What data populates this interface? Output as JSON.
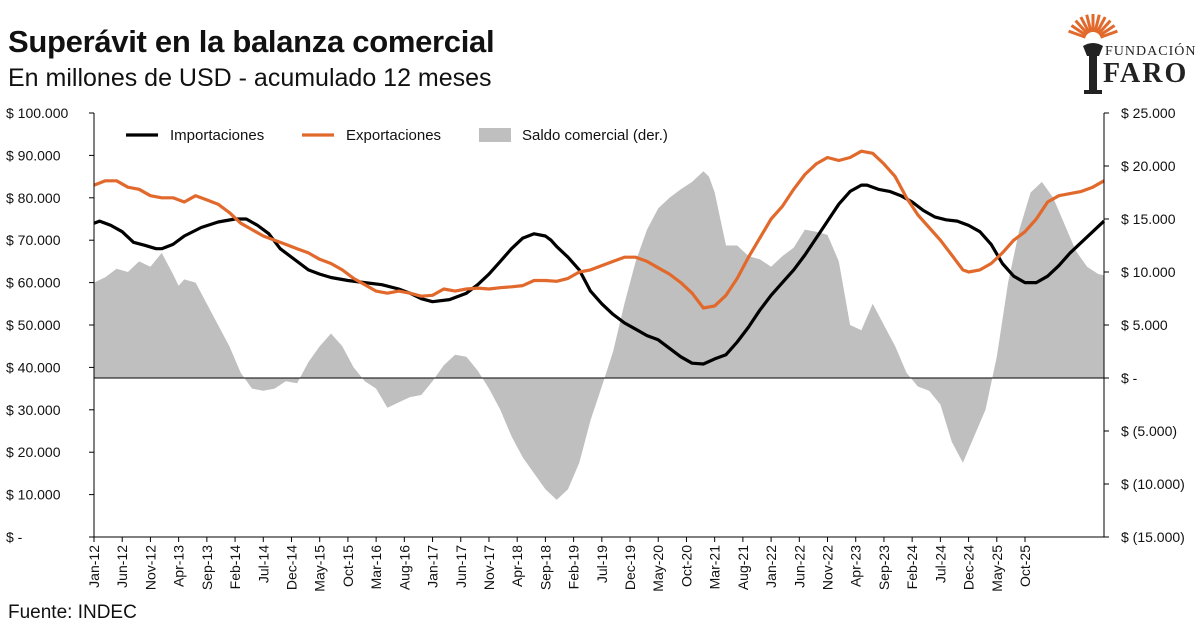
{
  "header": {
    "title": "Superávit en la balanza comercial",
    "subtitle": "En millones de USD - acumulado 12 meses",
    "source": "Fuente: INDEC"
  },
  "logo": {
    "line1": "FUNDACIÓN",
    "line2": "FARO"
  },
  "colors": {
    "imports": "#000000",
    "exports": "#e2692c",
    "balance": "#bfbfbf",
    "brand": "#e2692c"
  },
  "chart_data": {
    "type": "line+area",
    "title": "Superávit en la balanza comercial",
    "subtitle": "En millones de USD - acumulado 12 meses",
    "x_tick_labels": [
      "Jan-12",
      "Jun-12",
      "Nov-12",
      "Apr-13",
      "Sep-13",
      "Feb-14",
      "Jul-14",
      "Dec-14",
      "May-15",
      "Oct-15",
      "Mar-16",
      "Aug-16",
      "Jan-17",
      "Jun-17",
      "Nov-17",
      "Apr-18",
      "Sep-18",
      "Feb-19",
      "Jul-19",
      "Dec-19",
      "May-20",
      "Oct-20",
      "Mar-21",
      "Aug-21",
      "Jan-22",
      "Jun-22",
      "Nov-22",
      "Apr-23",
      "Sep-23",
      "Feb-24",
      "Jul-24",
      "Dec-24",
      "May-25",
      "Oct-25"
    ],
    "y_left": {
      "range": [
        0,
        100000
      ],
      "tick_labels": [
        "$ -",
        "$ 10.000",
        "$ 20.000",
        "$ 30.000",
        "$ 40.000",
        "$ 50.000",
        "$ 60.000",
        "$ 70.000",
        "$ 80.000",
        "$ 90.000",
        "$ 100.000"
      ]
    },
    "y_right": {
      "range": [
        -15000,
        25000
      ],
      "tick_labels": [
        "$ (15.000)",
        "$ (10.000)",
        "$ (5.000)",
        "$ -",
        "$ 5.000",
        "$ 10.000",
        "$ 15.000",
        "$ 20.000",
        "$ 25.000"
      ]
    },
    "legend": {
      "position": "top-left",
      "entries": [
        "Importaciones",
        "Exportaciones",
        "Saldo comercial (der.)"
      ]
    },
    "series": [
      {
        "name": "Importaciones",
        "axis": "left",
        "kind": "line",
        "points": [
          [
            0,
            74000
          ],
          [
            1,
            74500
          ],
          [
            3,
            73500
          ],
          [
            5,
            72000
          ],
          [
            7,
            69500
          ],
          [
            9,
            68800
          ],
          [
            11,
            68000
          ],
          [
            12,
            68000
          ],
          [
            14,
            69000
          ],
          [
            16,
            71000
          ],
          [
            19,
            73000
          ],
          [
            22,
            74300
          ],
          [
            25,
            75000
          ],
          [
            27,
            75000
          ],
          [
            29,
            73500
          ],
          [
            31,
            71500
          ],
          [
            33,
            68000
          ],
          [
            36,
            65000
          ],
          [
            38,
            63000
          ],
          [
            40,
            62000
          ],
          [
            42,
            61200
          ],
          [
            45,
            60500
          ],
          [
            48,
            60000
          ],
          [
            51,
            59500
          ],
          [
            54,
            58500
          ],
          [
            56,
            57500
          ],
          [
            58,
            56200
          ],
          [
            60,
            55500
          ],
          [
            63,
            56000
          ],
          [
            66,
            57500
          ],
          [
            68,
            59500
          ],
          [
            70,
            62000
          ],
          [
            72,
            65000
          ],
          [
            74,
            68000
          ],
          [
            76,
            70500
          ],
          [
            78,
            71500
          ],
          [
            80,
            71000
          ],
          [
            81,
            70000
          ],
          [
            82,
            68500
          ],
          [
            84,
            66000
          ],
          [
            86,
            63000
          ],
          [
            88,
            58000
          ],
          [
            90,
            55000
          ],
          [
            92,
            52500
          ],
          [
            94,
            50500
          ],
          [
            96,
            49000
          ],
          [
            98,
            47500
          ],
          [
            100,
            46500
          ],
          [
            102,
            44500
          ],
          [
            104,
            42500
          ],
          [
            106,
            41000
          ],
          [
            108,
            40800
          ],
          [
            110,
            42000
          ],
          [
            112,
            43000
          ],
          [
            114,
            46000
          ],
          [
            116,
            49500
          ],
          [
            118,
            53500
          ],
          [
            120,
            57000
          ],
          [
            122,
            60000
          ],
          [
            124,
            63000
          ],
          [
            126,
            66500
          ],
          [
            128,
            70500
          ],
          [
            130,
            74500
          ],
          [
            132,
            78500
          ],
          [
            134,
            81500
          ],
          [
            136,
            83000
          ],
          [
            137,
            83000
          ],
          [
            139,
            82000
          ],
          [
            141,
            81500
          ],
          [
            143,
            80500
          ],
          [
            145,
            79000
          ],
          [
            147,
            77000
          ],
          [
            149,
            75500
          ],
          [
            151,
            74800
          ],
          [
            153,
            74500
          ],
          [
            155,
            73500
          ],
          [
            157,
            72000
          ],
          [
            159,
            69000
          ],
          [
            161,
            64500
          ],
          [
            163,
            61500
          ],
          [
            165,
            60000
          ],
          [
            167,
            60000
          ],
          [
            169,
            61500
          ],
          [
            171,
            64000
          ],
          [
            173,
            67000
          ],
          [
            175,
            69500
          ],
          [
            177,
            72000
          ],
          [
            179,
            74500
          ]
        ]
      },
      {
        "name": "Exportaciones",
        "axis": "left",
        "kind": "line",
        "points": [
          [
            0,
            83000
          ],
          [
            1,
            83500
          ],
          [
            2,
            84000
          ],
          [
            4,
            84000
          ],
          [
            6,
            82500
          ],
          [
            8,
            82000
          ],
          [
            10,
            80500
          ],
          [
            12,
            80000
          ],
          [
            14,
            80000
          ],
          [
            16,
            79000
          ],
          [
            18,
            80500
          ],
          [
            20,
            79500
          ],
          [
            22,
            78500
          ],
          [
            24,
            76500
          ],
          [
            26,
            74000
          ],
          [
            28,
            72500
          ],
          [
            30,
            71000
          ],
          [
            32,
            70000
          ],
          [
            34,
            69000
          ],
          [
            36,
            68000
          ],
          [
            38,
            67000
          ],
          [
            40,
            65500
          ],
          [
            42,
            64500
          ],
          [
            44,
            63000
          ],
          [
            46,
            61000
          ],
          [
            48,
            59500
          ],
          [
            50,
            58000
          ],
          [
            52,
            57500
          ],
          [
            54,
            58000
          ],
          [
            56,
            57500
          ],
          [
            58,
            56800
          ],
          [
            60,
            57000
          ],
          [
            62,
            58500
          ],
          [
            64,
            58000
          ],
          [
            66,
            58500
          ],
          [
            68,
            58700
          ],
          [
            70,
            58500
          ],
          [
            72,
            58800
          ],
          [
            74,
            59000
          ],
          [
            76,
            59300
          ],
          [
            78,
            60500
          ],
          [
            80,
            60500
          ],
          [
            82,
            60300
          ],
          [
            84,
            61000
          ],
          [
            86,
            62500
          ],
          [
            88,
            63000
          ],
          [
            90,
            64000
          ],
          [
            92,
            65000
          ],
          [
            94,
            66000
          ],
          [
            96,
            66000
          ],
          [
            98,
            65000
          ],
          [
            100,
            63500
          ],
          [
            102,
            62000
          ],
          [
            104,
            60000
          ],
          [
            106,
            57500
          ],
          [
            108,
            54000
          ],
          [
            110,
            54500
          ],
          [
            112,
            57000
          ],
          [
            114,
            61000
          ],
          [
            116,
            66000
          ],
          [
            118,
            70500
          ],
          [
            120,
            75000
          ],
          [
            122,
            78000
          ],
          [
            124,
            82000
          ],
          [
            126,
            85500
          ],
          [
            128,
            88000
          ],
          [
            130,
            89500
          ],
          [
            132,
            88800
          ],
          [
            134,
            89500
          ],
          [
            136,
            91000
          ],
          [
            138,
            90500
          ],
          [
            140,
            88000
          ],
          [
            142,
            85000
          ],
          [
            144,
            80000
          ],
          [
            146,
            76000
          ],
          [
            148,
            73000
          ],
          [
            150,
            70000
          ],
          [
            152,
            66500
          ],
          [
            154,
            63000
          ],
          [
            155,
            62500
          ],
          [
            157,
            63000
          ],
          [
            159,
            64500
          ],
          [
            161,
            67000
          ],
          [
            163,
            70000
          ],
          [
            165,
            72000
          ],
          [
            167,
            75000
          ],
          [
            169,
            79000
          ],
          [
            171,
            80500
          ],
          [
            173,
            81000
          ],
          [
            175,
            81500
          ],
          [
            177,
            82500
          ],
          [
            179,
            84000
          ]
        ]
      },
      {
        "name": "Saldo comercial (der.)",
        "axis": "right",
        "kind": "area",
        "points": [
          [
            0,
            9000
          ],
          [
            2,
            9500
          ],
          [
            4,
            10300
          ],
          [
            6,
            10000
          ],
          [
            8,
            11000
          ],
          [
            10,
            10500
          ],
          [
            12,
            11800
          ],
          [
            14,
            9800
          ],
          [
            15,
            8700
          ],
          [
            16,
            9300
          ],
          [
            18,
            9000
          ],
          [
            20,
            7000
          ],
          [
            22,
            5000
          ],
          [
            24,
            3000
          ],
          [
            26,
            500
          ],
          [
            28,
            -1000
          ],
          [
            30,
            -1200
          ],
          [
            32,
            -1000
          ],
          [
            34,
            -300
          ],
          [
            36,
            -500
          ],
          [
            38,
            1500
          ],
          [
            40,
            3000
          ],
          [
            42,
            4200
          ],
          [
            44,
            3000
          ],
          [
            46,
            1000
          ],
          [
            48,
            -300
          ],
          [
            50,
            -1000
          ],
          [
            52,
            -2800
          ],
          [
            54,
            -2300
          ],
          [
            56,
            -1800
          ],
          [
            58,
            -1600
          ],
          [
            60,
            -300
          ],
          [
            62,
            1200
          ],
          [
            64,
            2200
          ],
          [
            66,
            2000
          ],
          [
            68,
            700
          ],
          [
            70,
            -1000
          ],
          [
            72,
            -3000
          ],
          [
            74,
            -5500
          ],
          [
            76,
            -7500
          ],
          [
            78,
            -9000
          ],
          [
            80,
            -10500
          ],
          [
            82,
            -11500
          ],
          [
            84,
            -10500
          ],
          [
            86,
            -8000
          ],
          [
            88,
            -4000
          ],
          [
            90,
            -800
          ],
          [
            92,
            2500
          ],
          [
            94,
            7000
          ],
          [
            96,
            11000
          ],
          [
            98,
            14000
          ],
          [
            100,
            16000
          ],
          [
            102,
            17000
          ],
          [
            104,
            17800
          ],
          [
            106,
            18500
          ],
          [
            108,
            19500
          ],
          [
            109,
            19000
          ],
          [
            110,
            17500
          ],
          [
            112,
            12500
          ],
          [
            114,
            12500
          ],
          [
            116,
            11500
          ],
          [
            118,
            11200
          ],
          [
            120,
            10500
          ],
          [
            122,
            11500
          ],
          [
            124,
            12300
          ],
          [
            126,
            14000
          ],
          [
            128,
            13800
          ],
          [
            130,
            13500
          ],
          [
            132,
            11000
          ],
          [
            134,
            5000
          ],
          [
            136,
            4500
          ],
          [
            138,
            7000
          ],
          [
            140,
            5000
          ],
          [
            142,
            3000
          ],
          [
            144,
            500
          ],
          [
            146,
            -800
          ],
          [
            148,
            -1200
          ],
          [
            150,
            -2500
          ],
          [
            152,
            -6000
          ],
          [
            154,
            -8000
          ],
          [
            156,
            -5500
          ],
          [
            158,
            -3000
          ],
          [
            160,
            2000
          ],
          [
            162,
            9000
          ],
          [
            164,
            14000
          ],
          [
            166,
            17500
          ],
          [
            168,
            18500
          ],
          [
            170,
            17000
          ],
          [
            172,
            14500
          ],
          [
            174,
            12000
          ],
          [
            176,
            10500
          ],
          [
            178,
            9800
          ],
          [
            179,
            9700
          ]
        ]
      }
    ]
  }
}
